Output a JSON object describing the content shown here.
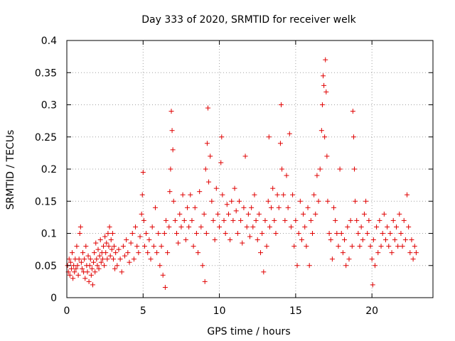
{
  "chart_data": {
    "type": "scatter",
    "title": "Day 333 of 2020, SRMTID for receiver welk",
    "xlabel": "GPS time / hours",
    "ylabel": "SRMTID / TECUs",
    "xlim": [
      0,
      24
    ],
    "ylim": [
      0,
      0.4
    ],
    "grid": true,
    "marker": "plus",
    "marker_color": "#e00000",
    "x_ticks": [
      {
        "value": 0,
        "label": "0"
      },
      {
        "value": 5,
        "label": "5"
      },
      {
        "value": 10,
        "label": "10"
      },
      {
        "value": 15,
        "label": "15"
      },
      {
        "value": 20,
        "label": "20"
      }
    ],
    "y_ticks": [
      {
        "value": 0,
        "label": "0"
      },
      {
        "value": 0.05,
        "label": "0.05"
      },
      {
        "value": 0.1,
        "label": "0.1"
      },
      {
        "value": 0.15,
        "label": "0.15"
      },
      {
        "value": 0.2,
        "label": "0.2"
      },
      {
        "value": 0.25,
        "label": "0.25"
      },
      {
        "value": 0.3,
        "label": "0.3"
      },
      {
        "value": 0.35,
        "label": "0.35"
      },
      {
        "value": 0.4,
        "label": "0.4"
      }
    ],
    "series": [
      {
        "name": "SRMTID",
        "points": [
          [
            0.05,
            0.05
          ],
          [
            0.1,
            0.04
          ],
          [
            0.15,
            0.06
          ],
          [
            0.2,
            0.035
          ],
          [
            0.25,
            0.055
          ],
          [
            0.3,
            0.045
          ],
          [
            0.35,
            0.07
          ],
          [
            0.4,
            0.03
          ],
          [
            0.45,
            0.05
          ],
          [
            0.5,
            0.04
          ],
          [
            0.55,
            0.06
          ],
          [
            0.6,
            0.045
          ],
          [
            0.65,
            0.08
          ],
          [
            0.7,
            0.05
          ],
          [
            0.75,
            0.035
          ],
          [
            0.8,
            0.06
          ],
          [
            0.85,
            0.1
          ],
          [
            0.9,
            0.11
          ],
          [
            0.95,
            0.055
          ],
          [
            1.0,
            0.045
          ],
          [
            1.05,
            0.07
          ],
          [
            1.1,
            0.04
          ],
          [
            1.15,
            0.06
          ],
          [
            1.2,
            0.03
          ],
          [
            1.25,
            0.08
          ],
          [
            1.3,
            0.05
          ],
          [
            1.35,
            0.04
          ],
          [
            1.4,
            0.065
          ],
          [
            1.45,
            0.025
          ],
          [
            1.5,
            0.05
          ],
          [
            1.55,
            0.06
          ],
          [
            1.6,
            0.035
          ],
          [
            1.65,
            0.045
          ],
          [
            1.7,
            0.02
          ],
          [
            1.75,
            0.055
          ],
          [
            1.8,
            0.07
          ],
          [
            1.85,
            0.04
          ],
          [
            1.9,
            0.085
          ],
          [
            1.95,
            0.06
          ],
          [
            2.0,
            0.05
          ],
          [
            2.05,
            0.075
          ],
          [
            2.1,
            0.045
          ],
          [
            2.15,
            0.065
          ],
          [
            2.2,
            0.09
          ],
          [
            2.25,
            0.055
          ],
          [
            2.3,
            0.07
          ],
          [
            2.35,
            0.06
          ],
          [
            2.4,
            0.08
          ],
          [
            2.45,
            0.05
          ],
          [
            2.5,
            0.095
          ],
          [
            2.55,
            0.07
          ],
          [
            2.6,
            0.085
          ],
          [
            2.65,
            0.06
          ],
          [
            2.7,
            0.1
          ],
          [
            2.75,
            0.08
          ],
          [
            2.8,
            0.11
          ],
          [
            2.85,
            0.065
          ],
          [
            2.9,
            0.09
          ],
          [
            2.95,
            0.075
          ],
          [
            3.0,
            0.1
          ],
          [
            3.05,
            0.06
          ],
          [
            3.1,
            0.08
          ],
          [
            3.15,
            0.045
          ],
          [
            3.2,
            0.07
          ],
          [
            3.3,
            0.05
          ],
          [
            3.4,
            0.075
          ],
          [
            3.5,
            0.06
          ],
          [
            3.6,
            0.04
          ],
          [
            3.7,
            0.08
          ],
          [
            3.8,
            0.065
          ],
          [
            3.9,
            0.09
          ],
          [
            4.0,
            0.07
          ],
          [
            4.1,
            0.055
          ],
          [
            4.2,
            0.085
          ],
          [
            4.3,
            0.1
          ],
          [
            4.4,
            0.06
          ],
          [
            4.5,
            0.11
          ],
          [
            4.6,
            0.08
          ],
          [
            4.7,
            0.07
          ],
          [
            4.8,
            0.095
          ],
          [
            4.9,
            0.13
          ],
          [
            4.95,
            0.16
          ],
          [
            5.0,
            0.195
          ],
          [
            5.05,
            0.12
          ],
          [
            5.1,
            0.08
          ],
          [
            5.2,
            0.1
          ],
          [
            5.3,
            0.07
          ],
          [
            5.4,
            0.09
          ],
          [
            5.5,
            0.06
          ],
          [
            5.6,
            0.11
          ],
          [
            5.7,
            0.08
          ],
          [
            5.8,
            0.14
          ],
          [
            5.9,
            0.07
          ],
          [
            6.0,
            0.1
          ],
          [
            6.1,
            0.05
          ],
          [
            6.2,
            0.08
          ],
          [
            6.3,
            0.035
          ],
          [
            6.4,
            0.1
          ],
          [
            6.45,
            0.016
          ],
          [
            6.5,
            0.12
          ],
          [
            6.6,
            0.07
          ],
          [
            6.7,
            0.11
          ],
          [
            6.75,
            0.165
          ],
          [
            6.8,
            0.2
          ],
          [
            6.85,
            0.29
          ],
          [
            6.9,
            0.26
          ],
          [
            6.95,
            0.23
          ],
          [
            7.0,
            0.15
          ],
          [
            7.1,
            0.12
          ],
          [
            7.2,
            0.1
          ],
          [
            7.3,
            0.085
          ],
          [
            7.4,
            0.13
          ],
          [
            7.5,
            0.11
          ],
          [
            7.6,
            0.16
          ],
          [
            7.7,
            0.12
          ],
          [
            7.8,
            0.09
          ],
          [
            7.9,
            0.14
          ],
          [
            8.0,
            0.11
          ],
          [
            8.1,
            0.16
          ],
          [
            8.2,
            0.12
          ],
          [
            8.3,
            0.08
          ],
          [
            8.4,
            0.14
          ],
          [
            8.5,
            0.1
          ],
          [
            8.6,
            0.07
          ],
          [
            8.7,
            0.165
          ],
          [
            8.8,
            0.11
          ],
          [
            8.9,
            0.05
          ],
          [
            9.0,
            0.13
          ],
          [
            9.05,
            0.025
          ],
          [
            9.1,
            0.2
          ],
          [
            9.15,
            0.1
          ],
          [
            9.2,
            0.24
          ],
          [
            9.25,
            0.295
          ],
          [
            9.3,
            0.18
          ],
          [
            9.4,
            0.22
          ],
          [
            9.5,
            0.15
          ],
          [
            9.6,
            0.12
          ],
          [
            9.7,
            0.09
          ],
          [
            9.8,
            0.17
          ],
          [
            9.9,
            0.13
          ],
          [
            10.0,
            0.11
          ],
          [
            10.1,
            0.21
          ],
          [
            10.15,
            0.25
          ],
          [
            10.2,
            0.16
          ],
          [
            10.3,
            0.12
          ],
          [
            10.4,
            0.1
          ],
          [
            10.5,
            0.145
          ],
          [
            10.6,
            0.13
          ],
          [
            10.7,
            0.09
          ],
          [
            10.8,
            0.15
          ],
          [
            10.9,
            0.12
          ],
          [
            11.0,
            0.17
          ],
          [
            11.1,
            0.135
          ],
          [
            11.2,
            0.1
          ],
          [
            11.3,
            0.15
          ],
          [
            11.4,
            0.12
          ],
          [
            11.5,
            0.085
          ],
          [
            11.6,
            0.14
          ],
          [
            11.7,
            0.22
          ],
          [
            11.8,
            0.11
          ],
          [
            11.9,
            0.13
          ],
          [
            12.0,
            0.095
          ],
          [
            12.1,
            0.14
          ],
          [
            12.2,
            0.11
          ],
          [
            12.3,
            0.16
          ],
          [
            12.4,
            0.12
          ],
          [
            12.5,
            0.09
          ],
          [
            12.6,
            0.13
          ],
          [
            12.7,
            0.07
          ],
          [
            12.8,
            0.1
          ],
          [
            12.9,
            0.04
          ],
          [
            13.0,
            0.12
          ],
          [
            13.1,
            0.08
          ],
          [
            13.2,
            0.15
          ],
          [
            13.25,
            0.25
          ],
          [
            13.3,
            0.11
          ],
          [
            13.4,
            0.14
          ],
          [
            13.5,
            0.17
          ],
          [
            13.6,
            0.12
          ],
          [
            13.7,
            0.1
          ],
          [
            13.8,
            0.16
          ],
          [
            13.9,
            0.14
          ],
          [
            14.0,
            0.24
          ],
          [
            14.05,
            0.3
          ],
          [
            14.1,
            0.2
          ],
          [
            14.2,
            0.16
          ],
          [
            14.3,
            0.12
          ],
          [
            14.4,
            0.19
          ],
          [
            14.5,
            0.14
          ],
          [
            14.6,
            0.255
          ],
          [
            14.7,
            0.11
          ],
          [
            14.8,
            0.16
          ],
          [
            14.9,
            0.08
          ],
          [
            15.0,
            0.12
          ],
          [
            15.1,
            0.05
          ],
          [
            15.2,
            0.1
          ],
          [
            15.3,
            0.15
          ],
          [
            15.4,
            0.09
          ],
          [
            15.5,
            0.13
          ],
          [
            15.6,
            0.11
          ],
          [
            15.7,
            0.08
          ],
          [
            15.8,
            0.14
          ],
          [
            15.9,
            0.05
          ],
          [
            16.0,
            0.12
          ],
          [
            16.1,
            0.1
          ],
          [
            16.2,
            0.16
          ],
          [
            16.3,
            0.13
          ],
          [
            16.4,
            0.19
          ],
          [
            16.5,
            0.15
          ],
          [
            16.6,
            0.2
          ],
          [
            16.7,
            0.26
          ],
          [
            16.75,
            0.3
          ],
          [
            16.8,
            0.345
          ],
          [
            16.85,
            0.33
          ],
          [
            16.9,
            0.25
          ],
          [
            16.95,
            0.37
          ],
          [
            17.0,
            0.32
          ],
          [
            17.05,
            0.22
          ],
          [
            17.1,
            0.15
          ],
          [
            17.2,
            0.1
          ],
          [
            17.3,
            0.09
          ],
          [
            17.4,
            0.06
          ],
          [
            17.5,
            0.14
          ],
          [
            17.6,
            0.12
          ],
          [
            17.7,
            0.1
          ],
          [
            17.8,
            0.08
          ],
          [
            17.9,
            0.2
          ],
          [
            18.0,
            0.1
          ],
          [
            18.1,
            0.07
          ],
          [
            18.2,
            0.09
          ],
          [
            18.3,
            0.05
          ],
          [
            18.4,
            0.11
          ],
          [
            18.5,
            0.06
          ],
          [
            18.6,
            0.12
          ],
          [
            18.7,
            0.08
          ],
          [
            18.75,
            0.29
          ],
          [
            18.8,
            0.25
          ],
          [
            18.85,
            0.2
          ],
          [
            18.9,
            0.15
          ],
          [
            19.0,
            0.12
          ],
          [
            19.1,
            0.1
          ],
          [
            19.2,
            0.08
          ],
          [
            19.3,
            0.11
          ],
          [
            19.4,
            0.09
          ],
          [
            19.5,
            0.13
          ],
          [
            19.6,
            0.15
          ],
          [
            19.7,
            0.1
          ],
          [
            19.8,
            0.12
          ],
          [
            19.9,
            0.08
          ],
          [
            20.0,
            0.06
          ],
          [
            20.05,
            0.02
          ],
          [
            20.1,
            0.09
          ],
          [
            20.2,
            0.05
          ],
          [
            20.3,
            0.11
          ],
          [
            20.4,
            0.07
          ],
          [
            20.5,
            0.12
          ],
          [
            20.6,
            0.08
          ],
          [
            20.7,
            0.1
          ],
          [
            20.8,
            0.13
          ],
          [
            20.9,
            0.09
          ],
          [
            21.0,
            0.11
          ],
          [
            21.1,
            0.08
          ],
          [
            21.2,
            0.1
          ],
          [
            21.3,
            0.07
          ],
          [
            21.4,
            0.12
          ],
          [
            21.5,
            0.09
          ],
          [
            21.6,
            0.11
          ],
          [
            21.7,
            0.08
          ],
          [
            21.8,
            0.13
          ],
          [
            21.9,
            0.1
          ],
          [
            22.0,
            0.08
          ],
          [
            22.1,
            0.12
          ],
          [
            22.2,
            0.09
          ],
          [
            22.3,
            0.16
          ],
          [
            22.4,
            0.11
          ],
          [
            22.5,
            0.07
          ],
          [
            22.6,
            0.09
          ],
          [
            22.7,
            0.06
          ],
          [
            22.8,
            0.08
          ],
          [
            22.9,
            0.07
          ]
        ]
      }
    ]
  }
}
